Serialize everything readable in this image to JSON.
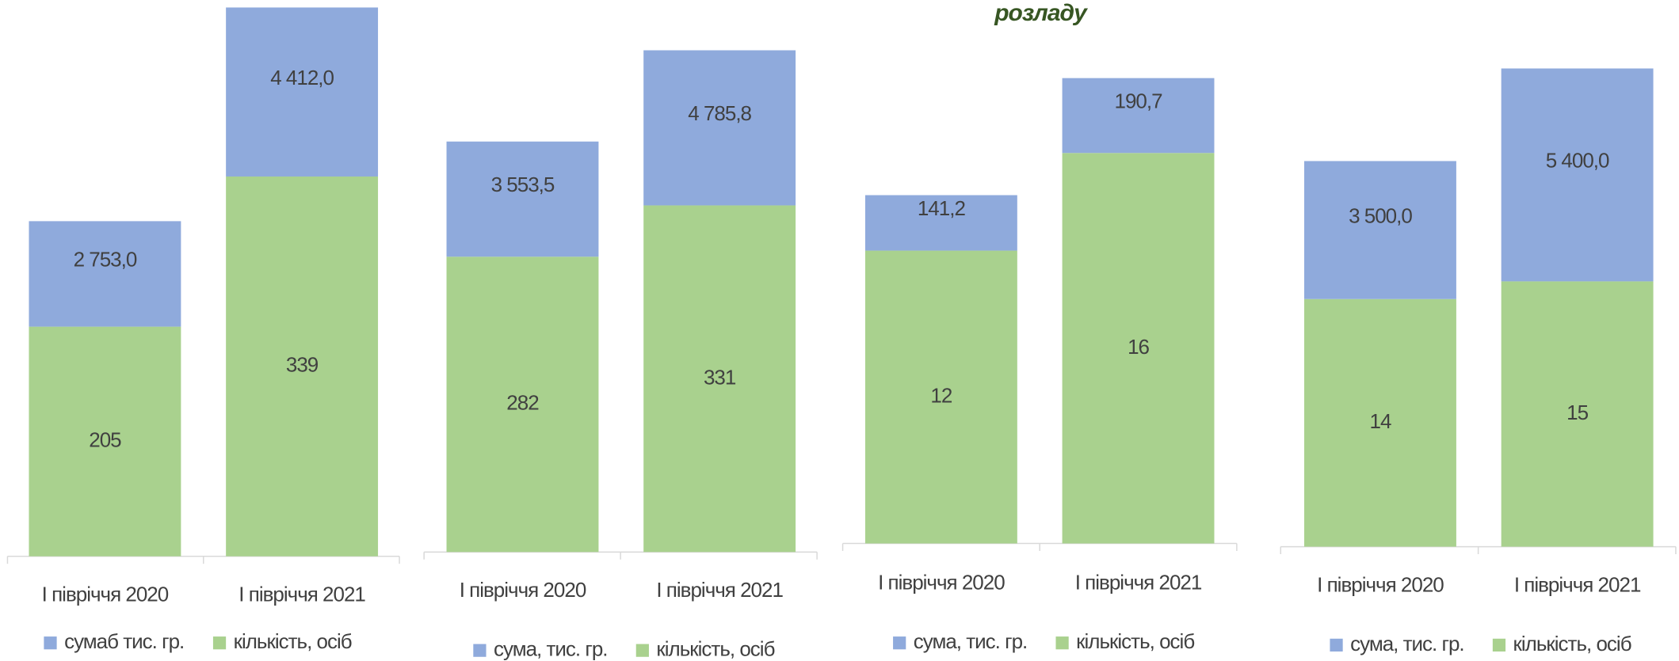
{
  "header": {
    "title": "розладу"
  },
  "chart_data": [
    {
      "type": "bar",
      "stacked": true,
      "categories": [
        "І півріччя 2020",
        "І півріччя 2021"
      ],
      "series": [
        {
          "name": "сумаб тис. гр.",
          "color": "#8faadc",
          "values": [
            2753.0,
            4412.0
          ],
          "value_labels": [
            "2 753,0",
            "4 412,0"
          ]
        },
        {
          "name": "кількість, осіб",
          "color": "#a9d18e",
          "values": [
            205,
            339
          ]
        }
      ]
    },
    {
      "type": "bar",
      "stacked": true,
      "categories": [
        "І півріччя 2020",
        "І півріччя 2021"
      ],
      "series": [
        {
          "name": "сума, тис. гр.",
          "color": "#8faadc",
          "values": [
            3553.5,
            4785.8
          ],
          "value_labels": [
            "3 553,5",
            "4 785,8"
          ]
        },
        {
          "name": "кількість, осіб",
          "color": "#a9d18e",
          "values": [
            282,
            331
          ]
        }
      ]
    },
    {
      "type": "bar",
      "stacked": true,
      "categories": [
        "І півріччя 2020",
        "І півріччя 2021"
      ],
      "series": [
        {
          "name": "сума, тис. гр.",
          "color": "#8faadc",
          "values": [
            141.2,
            190.7
          ],
          "value_labels": [
            "141,2",
            "190,7"
          ]
        },
        {
          "name": "кількість, осіб",
          "color": "#a9d18e",
          "values": [
            12,
            16
          ]
        }
      ]
    },
    {
      "type": "bar",
      "stacked": true,
      "categories": [
        "І півріччя 2020",
        "І півріччя 2021"
      ],
      "series": [
        {
          "name": "сума, тис. гр.",
          "color": "#8faadc",
          "values": [
            3500.0,
            5400.0
          ],
          "value_labels": [
            "3 500,0",
            "5 400,0"
          ]
        },
        {
          "name": "кількість, осіб",
          "color": "#a9d18e",
          "values": [
            14,
            15
          ]
        }
      ]
    }
  ]
}
